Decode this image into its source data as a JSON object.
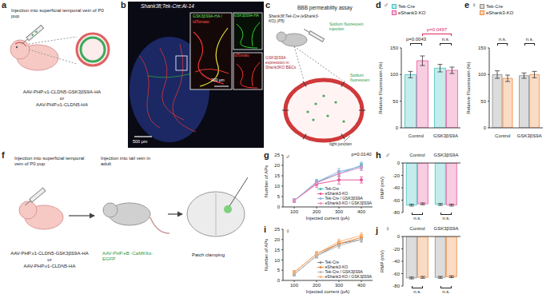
{
  "panel_labels": [
    "a",
    "b",
    "c",
    "d",
    "e",
    "f",
    "g",
    "h",
    "i",
    "j"
  ],
  "diagrams": {
    "a": {
      "caption": "Injection into superficial temporal vein of P0 pup",
      "vectors": [
        "AAV-PHP.v1-CLDN5-GSK3βS9A-HA",
        "or",
        "AAV-PHP.v1-CLDN5-HA"
      ]
    },
    "b": {
      "title": "Shank3fl;Tek-Cre:Ai-14",
      "merge_label": [
        "GSK3βS9A-HA /",
        "tdTomato"
      ],
      "channels": [
        "GSK3βS9A-HA",
        "tdTomato"
      ],
      "scale_bars": [
        "500 μm",
        "200 μm"
      ]
    },
    "c": {
      "title": "BBB permeability assay",
      "mouse": "Shank3fl;Tek-Cre (eShank3-KO) (P5)",
      "labels": [
        "GSK3βS9A expression in Shank3KO BECs",
        "Sodium fluorescein injection",
        "tight junction",
        "Sodium fluorescein"
      ]
    },
    "f": {
      "steps": [
        "Injection into superficial temporal vein of P0 pup",
        "Injection into tail vein in adult",
        "Patch clamping"
      ],
      "vectors": [
        "AAV-PHP.v1-CLDN5-GSK3βS9A-HA",
        "or",
        "AAV-PHP.v1-CLDN5-HA"
      ],
      "adult_vector": "AAV-PHP.eB -CaMKIIα-EGFP"
    }
  },
  "chart_data": [
    {
      "type": "bar",
      "title": "♂",
      "legend": "top",
      "categories": [
        "Control",
        "GSK3βS9A"
      ],
      "series": [
        {
          "name": "Tek-Cre",
          "color": "#3fbfbf",
          "values": [
            100,
            112
          ],
          "errors": [
            6,
            7
          ]
        },
        {
          "name": "eShank3-KO",
          "color": "#e8559b",
          "values": [
            126,
            108
          ],
          "errors": [
            9,
            6
          ]
        }
      ],
      "y_label": "Relative Fluorescein (%)",
      "ylim": [
        0,
        150
      ],
      "yticks": [
        0,
        50,
        100,
        150
      ],
      "annotations": [
        {
          "text": "p=0.0043",
          "color": "#222222"
        },
        {
          "text": "p=0.0497",
          "color": "#e0245e"
        },
        {
          "text": "n.s.",
          "color": "#222222"
        }
      ]
    },
    {
      "type": "bar",
      "title": "♀",
      "legend": "top",
      "categories": [
        "Control",
        "GSK3βS9A"
      ],
      "series": [
        {
          "name": "Tek-Cre",
          "color": "#8a8a8a",
          "values": [
            100,
            98
          ],
          "errors": [
            7,
            5
          ]
        },
        {
          "name": "eShank3-KO",
          "color": "#f0883a",
          "values": [
            93,
            100
          ],
          "errors": [
            6,
            6
          ]
        }
      ],
      "y_label": "Relative Fluorescein (%)",
      "ylim": [
        0,
        150
      ],
      "yticks": [
        0,
        50,
        100,
        150
      ],
      "annotations": [
        {
          "text": "n.s.",
          "color": "#222222"
        },
        {
          "text": "n.s.",
          "color": "#222222"
        }
      ]
    },
    {
      "type": "line",
      "title": "♂",
      "legend": "lower right",
      "marker": "circle",
      "x": [
        100,
        200,
        300,
        400
      ],
      "xlim": [
        50,
        450
      ],
      "xticks": [
        100,
        200,
        300,
        400
      ],
      "x_label": "Injected current (pA)",
      "y_label": "Number of APs",
      "ylim": [
        0,
        25
      ],
      "yticks": [
        0,
        5,
        10,
        15,
        20,
        25
      ],
      "series": [
        {
          "name": "Tek-Cre",
          "color": "#3fbfbf",
          "values": [
            3,
            12,
            16,
            20
          ],
          "errors": [
            0.8,
            1.2,
            1.5,
            1.5
          ]
        },
        {
          "name": "eShank3-KO",
          "color": "#e8559b",
          "values": [
            3,
            11,
            13,
            13
          ],
          "errors": [
            0.8,
            1.5,
            2,
            1.5
          ]
        },
        {
          "name": "Tek-Cre / GSK3βS9A",
          "color": "#8fb3e6",
          "values": [
            3,
            12,
            17,
            19.5
          ],
          "errors": [
            0.8,
            1.2,
            1.5,
            1.5
          ]
        },
        {
          "name": "eShank3-KO / GSK3βS9A",
          "color": "#e58fc0",
          "values": [
            3,
            11.5,
            16,
            19
          ],
          "errors": [
            0.8,
            1.2,
            1.5,
            1.5
          ]
        }
      ],
      "annotations": [
        {
          "text": "p=0.0140",
          "color": "#222222"
        }
      ]
    },
    {
      "type": "bar",
      "title": "♂",
      "categories": [
        "Control",
        "GSK3βS9A"
      ],
      "series": [
        {
          "name": "Tek-Cre",
          "color": "#3fbfbf",
          "values": [
            -68,
            -67
          ],
          "errors": [
            1.5,
            1.5
          ]
        },
        {
          "name": "eShank3-KO",
          "color": "#e8559b",
          "values": [
            -66,
            -68
          ],
          "errors": [
            1.5,
            1.5
          ]
        }
      ],
      "y_label": "RMP (mV)",
      "ylim": [
        -80,
        0
      ],
      "yticks": [
        -80,
        -60,
        -40,
        -20,
        0
      ],
      "annotations": [
        {
          "text": "n.s.",
          "color": "#222222"
        },
        {
          "text": "n.s.",
          "color": "#222222"
        }
      ]
    },
    {
      "type": "line",
      "title": "♀",
      "legend": "lower right",
      "marker": "circle",
      "x": [
        100,
        200,
        300,
        400
      ],
      "xlim": [
        50,
        450
      ],
      "xticks": [
        100,
        200,
        300,
        400
      ],
      "x_label": "Injected current (pA)",
      "y_label": "Number of APs",
      "ylim": [
        0,
        25
      ],
      "yticks": [
        0,
        5,
        10,
        15,
        20,
        25
      ],
      "series": [
        {
          "name": "Tek-Cre",
          "color": "#8a8a8a",
          "values": [
            3,
            12,
            18,
            20
          ],
          "errors": [
            0.8,
            1,
            1.2,
            1.2
          ]
        },
        {
          "name": "eShank3-KO",
          "color": "#f0883a",
          "values": [
            4,
            13,
            18,
            21
          ],
          "errors": [
            0.8,
            1,
            1.2,
            1.2
          ]
        },
        {
          "name": "Tek-Cre / GSK3βS9A",
          "color": "#b8b8b8",
          "values": [
            3,
            12,
            17,
            20
          ],
          "errors": [
            0.8,
            1,
            1.2,
            1.2
          ]
        },
        {
          "name": "eShank3-KO / GSK3βS9A",
          "color": "#f6b27a",
          "values": [
            4,
            13,
            19,
            22
          ],
          "errors": [
            0.8,
            1,
            1.2,
            1.2
          ]
        }
      ]
    },
    {
      "type": "bar",
      "title": "♀",
      "categories": [
        "Control",
        "GSK3βS9A"
      ],
      "series": [
        {
          "name": "Tek-Cre",
          "color": "#8a8a8a",
          "values": [
            -67,
            -66
          ],
          "errors": [
            1.5,
            1.5
          ]
        },
        {
          "name": "eShank3-KO",
          "color": "#f0883a",
          "values": [
            -66,
            -65
          ],
          "errors": [
            1.5,
            1.5
          ]
        }
      ],
      "y_label": "RMP (mV)",
      "ylim": [
        -80,
        0
      ],
      "yticks": [
        -80,
        -60,
        -40,
        -20,
        0
      ],
      "annotations": [
        {
          "text": "n.s.",
          "color": "#222222"
        },
        {
          "text": "n.s.",
          "color": "#222222"
        }
      ]
    }
  ]
}
